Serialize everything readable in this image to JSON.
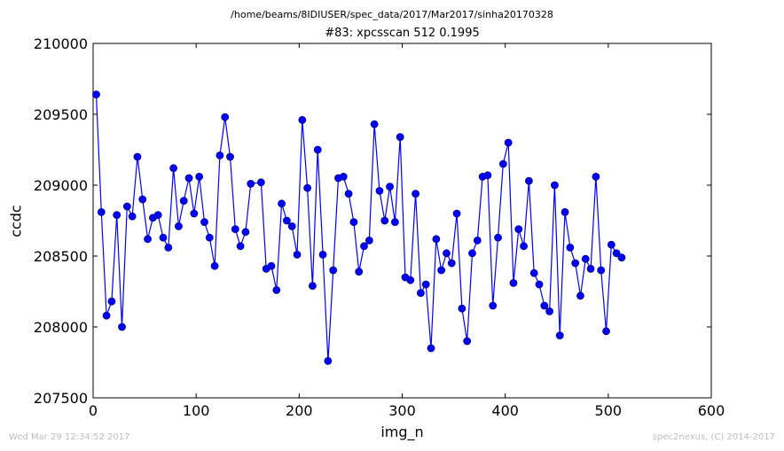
{
  "header": {
    "path": "/home/beams/8IDIUSER/spec_data/2017/Mar2017/sinha20170328",
    "title": "#83: xpcsscan 512 0.1995"
  },
  "footer": {
    "timestamp": "Wed Mar 29 12:34:52 2017",
    "credit": "spec2nexus, (C) 2014-2017"
  },
  "colors": {
    "series": "#0000ff",
    "marker_fill": "#0000ff",
    "marker_edge": "#00007a",
    "axes": "#000000"
  },
  "chart_data": {
    "type": "line",
    "title": "#83: xpcsscan 512 0.1995",
    "xlabel": "img_n",
    "ylabel": "ccdc",
    "xlim": [
      0,
      600
    ],
    "ylim": [
      207500,
      210000
    ],
    "xticks": [
      0,
      100,
      200,
      300,
      400,
      500,
      600
    ],
    "yticks": [
      207500,
      208000,
      208500,
      209000,
      209500,
      210000
    ],
    "grid": false,
    "markers": "circle",
    "series": [
      {
        "x": [
          3,
          8,
          13,
          18,
          23,
          28,
          33,
          38,
          43,
          48,
          53,
          58,
          63,
          68,
          73,
          78,
          83,
          88,
          93,
          98,
          103,
          108,
          113,
          118,
          123,
          128,
          133,
          138,
          143,
          148,
          153,
          163,
          168,
          173,
          178,
          183,
          188,
          193,
          198,
          203,
          208,
          213,
          218,
          223,
          228,
          233,
          238,
          243,
          248,
          253,
          258,
          263,
          268,
          273,
          278,
          283,
          288,
          293,
          298,
          303,
          308,
          313,
          318,
          323,
          328,
          333,
          338,
          343,
          348,
          353,
          358,
          363,
          368,
          373,
          378,
          383,
          388,
          393,
          398,
          403,
          408,
          413,
          418,
          423,
          428,
          433,
          438,
          443,
          448,
          453,
          458,
          463,
          468,
          473,
          478,
          483,
          488,
          493,
          498,
          503,
          508,
          513
        ],
        "values": [
          209640,
          208810,
          208080,
          208180,
          208790,
          208000,
          208850,
          208780,
          209200,
          208900,
          208620,
          208770,
          208790,
          208630,
          208560,
          209120,
          208710,
          208890,
          209050,
          208800,
          209060,
          208740,
          208630,
          208430,
          209210,
          209480,
          209200,
          208690,
          208570,
          208670,
          209010,
          209020,
          208410,
          208430,
          208260,
          208870,
          208750,
          208710,
          208510,
          209460,
          208980,
          208290,
          209250,
          208510,
          207760,
          208400,
          209050,
          209060,
          208940,
          208740,
          208390,
          208570,
          208610,
          209430,
          208960,
          208750,
          208990,
          208740,
          209340,
          208350,
          208330,
          208940,
          208240,
          208300,
          207850,
          208620,
          208400,
          208520,
          208450,
          208800,
          208130,
          207900,
          208520,
          208610,
          209060,
          209070,
          208150,
          208630,
          209150,
          209300,
          208310,
          208690,
          208570,
          209030,
          208380,
          208300,
          208150,
          208110,
          209000,
          207940,
          208810,
          208560,
          208450,
          208220,
          208480,
          208410,
          209060,
          208400,
          207970,
          208580,
          208520,
          208490
        ]
      }
    ]
  }
}
